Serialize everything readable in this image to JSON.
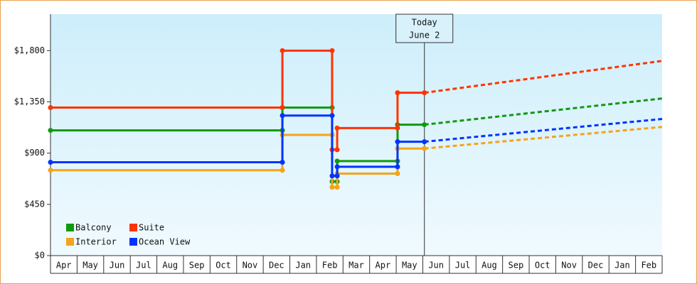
{
  "chart_data": {
    "type": "step-line",
    "xlim": [
      0,
      23
    ],
    "ylim": [
      0,
      2120
    ],
    "yticks": [
      {
        "value": 0,
        "label": "$0"
      },
      {
        "value": 450,
        "label": "$450"
      },
      {
        "value": 900,
        "label": "$900"
      },
      {
        "value": 1350,
        "label": "$1,350"
      },
      {
        "value": 1800,
        "label": "$1,800"
      }
    ],
    "xticks": [
      {
        "value": 0.5,
        "label": "Apr"
      },
      {
        "value": 1.5,
        "label": "May"
      },
      {
        "value": 2.5,
        "label": "Jun"
      },
      {
        "value": 3.5,
        "label": "Jul"
      },
      {
        "value": 4.5,
        "label": "Aug"
      },
      {
        "value": 5.5,
        "label": "Sep"
      },
      {
        "value": 6.5,
        "label": "Oct"
      },
      {
        "value": 7.5,
        "label": "Nov"
      },
      {
        "value": 8.5,
        "label": "Dec"
      },
      {
        "value": 9.5,
        "label": "Jan"
      },
      {
        "value": 10.5,
        "label": "Feb"
      },
      {
        "value": 11.5,
        "label": "Mar"
      },
      {
        "value": 12.5,
        "label": "Apr"
      },
      {
        "value": 13.5,
        "label": "May"
      },
      {
        "value": 14.5,
        "label": "Jun"
      },
      {
        "value": 15.5,
        "label": "Jul"
      },
      {
        "value": 16.5,
        "label": "Aug"
      },
      {
        "value": 17.5,
        "label": "Sep"
      },
      {
        "value": 18.5,
        "label": "Oct"
      },
      {
        "value": 19.5,
        "label": "Nov"
      },
      {
        "value": 20.5,
        "label": "Dec"
      },
      {
        "value": 21.5,
        "label": "Jan"
      },
      {
        "value": 22.5,
        "label": "Feb"
      }
    ],
    "today": {
      "x": 14.06,
      "label": [
        "Today",
        "June 2"
      ]
    },
    "legend": "lower-left",
    "series": [
      {
        "name": "Balcony",
        "color": "#119911",
        "x": [
          0,
          8.72,
          8.72,
          10.59,
          10.59,
          10.78,
          10.78,
          13.05,
          13.05,
          14.06
        ],
        "values": [
          1100,
          1100,
          1300,
          1300,
          650,
          650,
          830,
          830,
          1150,
          1150
        ],
        "forecast_x": [
          14.06,
          23
        ],
        "forecast_values": [
          1150,
          1380
        ]
      },
      {
        "name": "Suite",
        "color": "#ff3300",
        "x": [
          0,
          8.72,
          8.72,
          10.59,
          10.59,
          10.78,
          10.78,
          13.05,
          13.05,
          14.06
        ],
        "values": [
          1300,
          1300,
          1800,
          1800,
          930,
          930,
          1120,
          1120,
          1430,
          1430
        ],
        "forecast_x": [
          14.06,
          23
        ],
        "forecast_values": [
          1430,
          1710
        ]
      },
      {
        "name": "Interior",
        "color": "#f5a31a",
        "x": [
          0,
          8.72,
          8.72,
          10.59,
          10.59,
          10.78,
          10.78,
          13.05,
          13.05,
          14.06
        ],
        "values": [
          750,
          750,
          1060,
          1060,
          600,
          600,
          720,
          720,
          940,
          940
        ],
        "forecast_x": [
          14.06,
          23
        ],
        "forecast_values": [
          940,
          1130
        ]
      },
      {
        "name": "Ocean View",
        "color": "#0033ff",
        "x": [
          0,
          8.72,
          8.72,
          10.59,
          10.59,
          10.78,
          10.78,
          13.05,
          13.05,
          14.06
        ],
        "values": [
          820,
          820,
          1230,
          1230,
          700,
          700,
          780,
          780,
          1000,
          1000
        ],
        "forecast_x": [
          14.06,
          23
        ],
        "forecast_values": [
          1000,
          1200
        ]
      }
    ]
  }
}
